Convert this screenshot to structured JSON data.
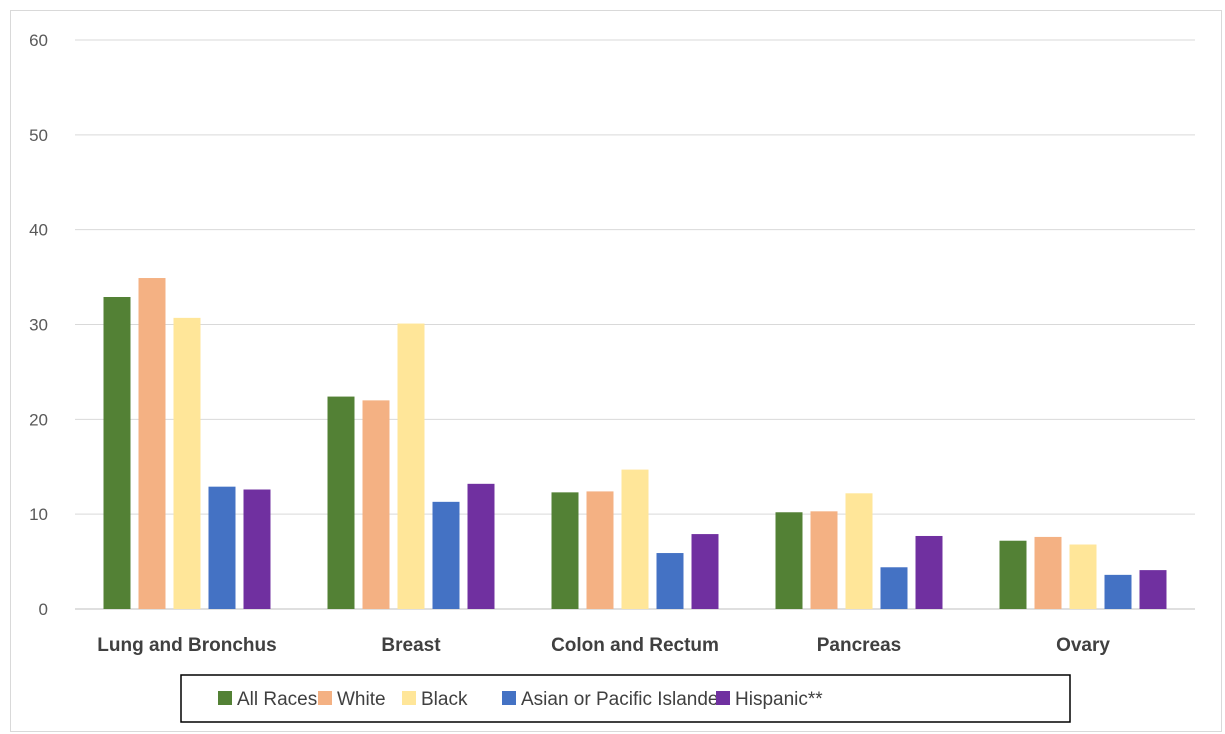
{
  "chart_data": {
    "type": "bar",
    "title": "",
    "xlabel": "",
    "ylabel": "",
    "ylim": [
      0,
      60
    ],
    "yticks": [
      "0",
      "10",
      "20",
      "30",
      "40",
      "50",
      "60"
    ],
    "grid": true,
    "legend_position": "bottom",
    "categories": [
      "Lung and Bronchus",
      "Breast",
      "Colon and Rectum",
      "Pancreas",
      "Ovary"
    ],
    "series": [
      {
        "name": "All Races",
        "color": "#538135",
        "values": [
          32.9,
          22.4,
          12.3,
          10.2,
          7.2
        ]
      },
      {
        "name": "White",
        "color": "#F4B183",
        "values": [
          34.9,
          22.0,
          12.4,
          10.3,
          7.6
        ]
      },
      {
        "name": "Black",
        "color": "#FFE699",
        "values": [
          30.7,
          30.1,
          14.7,
          12.2,
          6.8
        ]
      },
      {
        "name": "Asian or Pacific Islander",
        "color": "#4472C4",
        "values": [
          12.9,
          11.3,
          5.9,
          4.4,
          3.6
        ]
      },
      {
        "name": "Hispanic**",
        "color": "#7030A0",
        "values": [
          12.6,
          13.2,
          7.9,
          7.7,
          4.1
        ]
      }
    ]
  }
}
